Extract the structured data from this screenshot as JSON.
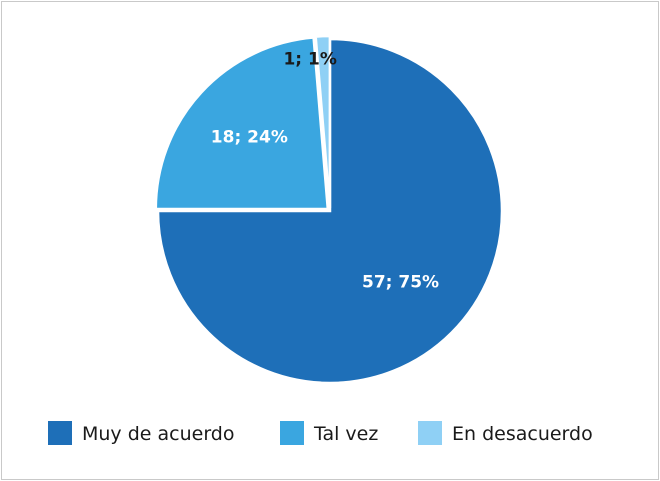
{
  "chart_data": {
    "type": "pie",
    "title": "",
    "start_angle_deg": 0,
    "direction": "clockwise",
    "exploded": true,
    "legend_position": "bottom",
    "slices": [
      {
        "label": "Muy de acuerdo",
        "value": 57,
        "percent": 75,
        "color": "#1e6fb8",
        "data_label": "57; 75%",
        "label_color": "#ffffff"
      },
      {
        "label": "Tal vez",
        "value": 18,
        "percent": 24,
        "color": "#3aa6e0",
        "data_label": "18; 24%",
        "label_color": "#ffffff"
      },
      {
        "label": "En desacuerdo",
        "value": 1,
        "percent": 1,
        "color": "#8fd0f5",
        "data_label": "1; 1%",
        "label_color": "#1a1a1a"
      }
    ]
  }
}
